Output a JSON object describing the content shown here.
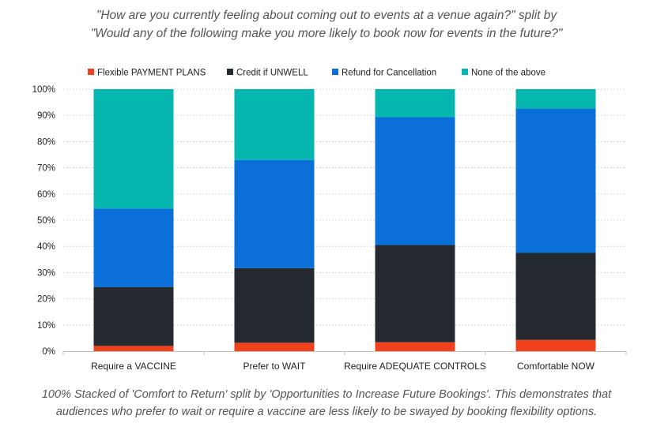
{
  "title": {
    "line1": "\"How are you currently feeling about coming out to events at a venue again?\" split by",
    "line2": "\"Would any of the following make you more likely to book now for events in the future?\""
  },
  "caption": {
    "line1": "100% Stacked of 'Comfort to Return' split by 'Opportunities to Increase Future Bookings'. This demonstrates that",
    "line2": "audiences who prefer to wait or require a vaccine are less likely to be swayed by booking flexibility options."
  },
  "chart_data": {
    "type": "bar",
    "stacked": true,
    "percent_stacked": true,
    "categories": [
      "Require a VACCINE",
      "Prefer to WAIT",
      "Require ADEQUATE CONTROLS",
      "Comfortable NOW"
    ],
    "series": [
      {
        "name": "Flexible PAYMENT PLANS",
        "color": "#f0401c",
        "values": [
          2.0,
          3.2,
          3.4,
          4.3
        ]
      },
      {
        "name": "Credit if UNWELL",
        "color": "#252a30",
        "values": [
          22.5,
          28.5,
          37.1,
          33.2
        ]
      },
      {
        "name": "Refund for Cancellation",
        "color": "#0a6fd8",
        "values": [
          29.9,
          41.3,
          48.8,
          55.1
        ]
      },
      {
        "name": "None of the above",
        "color": "#06b7b0",
        "values": [
          45.6,
          27.0,
          10.7,
          7.4
        ]
      }
    ],
    "ylim": [
      0,
      100
    ],
    "yticks": [
      "0%",
      "10%",
      "20%",
      "30%",
      "40%",
      "50%",
      "60%",
      "70%",
      "80%",
      "90%",
      "100%"
    ],
    "grid": true,
    "legend_position": "top"
  }
}
